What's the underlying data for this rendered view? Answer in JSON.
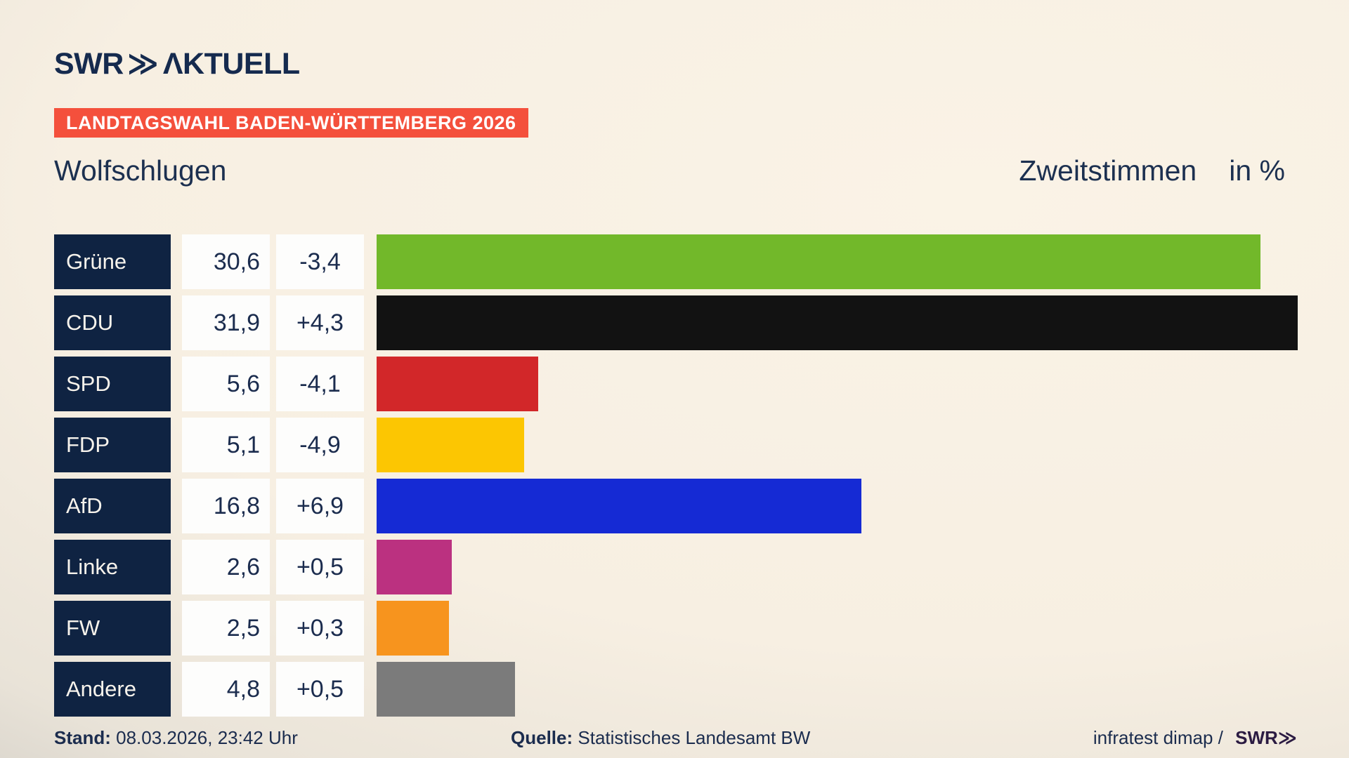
{
  "brand": {
    "logo_swr": "SWR",
    "logo_chevrons": "≫",
    "logo_suffix": "ΛKTUELL"
  },
  "banner": {
    "text": "LANDTAGSWAHL BADEN-WÜRTTEMBERG 2026",
    "bg": "#f4503c"
  },
  "header": {
    "title": "Wolfschlugen",
    "measure_label": "Zweitstimmen",
    "unit_label": "in %"
  },
  "chart_data": {
    "type": "bar",
    "orientation": "horizontal",
    "title": "Wolfschlugen — Zweitstimmen in %",
    "unit": "%",
    "xlim": [
      0,
      31.9
    ],
    "scale_max": 31.9,
    "grid": false,
    "categories": [
      "Grüne",
      "CDU",
      "SPD",
      "FDP",
      "AfD",
      "Linke",
      "FW",
      "Andere"
    ],
    "series": [
      {
        "name": "Zweitstimmen in %",
        "values": [
          30.6,
          31.9,
          5.6,
          5.1,
          16.8,
          2.6,
          2.5,
          4.8
        ]
      },
      {
        "name": "Veränderung",
        "values": [
          -3.4,
          4.3,
          -4.1,
          -4.9,
          6.9,
          0.5,
          0.3,
          0.5
        ]
      }
    ],
    "rows": [
      {
        "party": "Grüne",
        "value": "30,6",
        "change": "-3,4",
        "value_num": 30.6,
        "color": "#72b82a"
      },
      {
        "party": "CDU",
        "value": "31,9",
        "change": "+4,3",
        "value_num": 31.9,
        "color": "#121212"
      },
      {
        "party": "SPD",
        "value": "5,6",
        "change": "-4,1",
        "value_num": 5.6,
        "color": "#d22729"
      },
      {
        "party": "FDP",
        "value": "5,1",
        "change": "-4,9",
        "value_num": 5.1,
        "color": "#fcc602"
      },
      {
        "party": "AfD",
        "value": "16,8",
        "change": "+6,9",
        "value_num": 16.8,
        "color": "#152ad4"
      },
      {
        "party": "Linke",
        "value": "2,6",
        "change": "+0,5",
        "value_num": 2.6,
        "color": "#bb3180"
      },
      {
        "party": "FW",
        "value": "2,5",
        "change": "+0,3",
        "value_num": 2.5,
        "color": "#f7941e"
      },
      {
        "party": "Andere",
        "value": "4,8",
        "change": "+0,5",
        "value_num": 4.8,
        "color": "#7b7b7b"
      }
    ],
    "colors": {
      "label_box": "#0f2342",
      "value_box": "#fdfdfc",
      "text": "#1b2c4e"
    }
  },
  "footer": {
    "stand_label": "Stand:",
    "stand_value": "08.03.2026, 23:42 Uhr",
    "quelle_label": "Quelle:",
    "quelle_value": "Statistisches Landesamt BW",
    "credit_text": "infratest dimap /",
    "credit_logo_swr": "SWR",
    "credit_logo_chevrons": "≫"
  }
}
